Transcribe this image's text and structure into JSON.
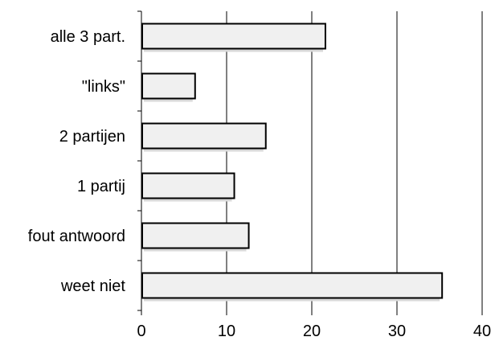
{
  "chart_data": {
    "type": "bar",
    "orientation": "horizontal",
    "title": "",
    "xlabel": "",
    "ylabel": "",
    "categories": [
      "alle 3 part.",
      "\"links\"",
      "2 partijen",
      "1 partij",
      "fout antwoord",
      "weet niet"
    ],
    "values": [
      21.6,
      6.3,
      14.6,
      10.9,
      12.6,
      35.3
    ],
    "xlim": [
      0,
      40
    ],
    "xticks": [
      0,
      10,
      20,
      30,
      40
    ],
    "xtick_labels": [
      "0",
      "10",
      "20",
      "30",
      "40"
    ],
    "grid": "vertical",
    "legend": "none",
    "colors": {
      "bar_fill": "#f0f0f0",
      "bar_stroke": "#000000",
      "bar_shadow": "#d8d8d8",
      "grid": "#000000",
      "text": "#000000"
    }
  }
}
